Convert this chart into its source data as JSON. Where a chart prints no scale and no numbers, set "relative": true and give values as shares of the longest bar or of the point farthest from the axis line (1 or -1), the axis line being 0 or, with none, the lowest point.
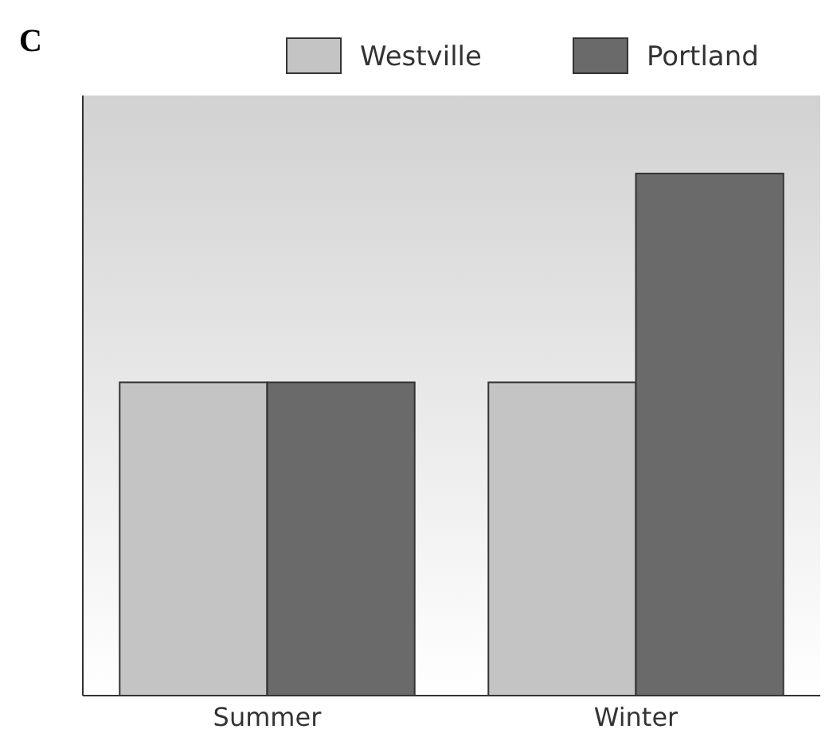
{
  "chart_data": {
    "type": "bar",
    "relative": true,
    "categories": [
      "Summer",
      "Winter"
    ],
    "series": [
      {
        "name": "Westville",
        "color": "#c4c4c4",
        "values": [
          0.6,
          0.6
        ]
      },
      {
        "name": "Portland",
        "color": "#6a6a6a",
        "values": [
          0.6,
          1
        ]
      }
    ],
    "legend": "top right",
    "annotations": [
      "C"
    ]
  }
}
